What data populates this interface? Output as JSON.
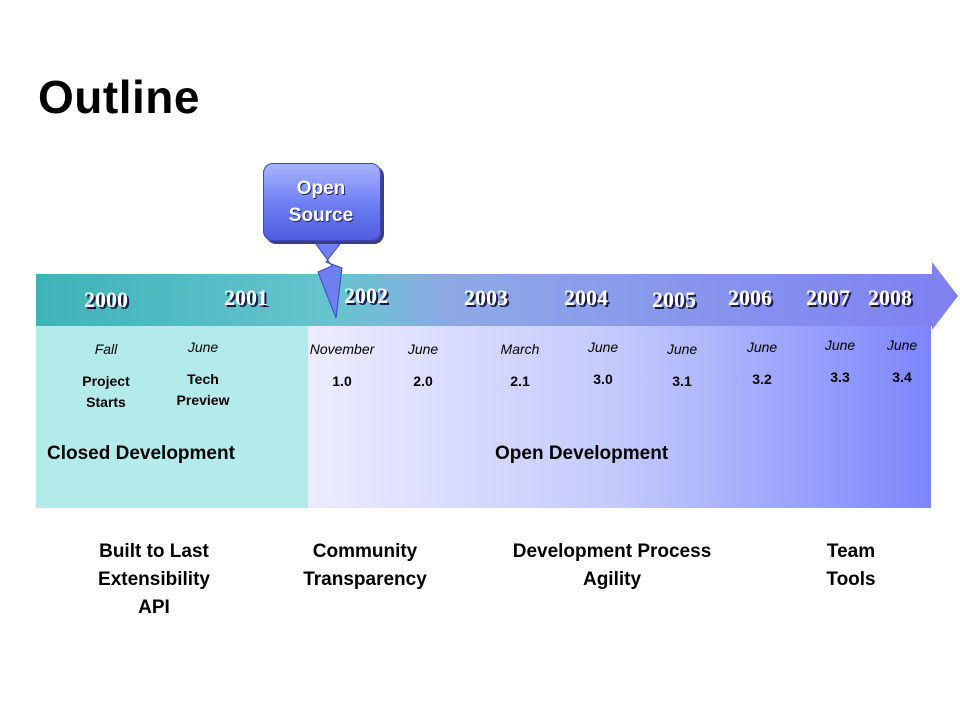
{
  "title": "Outline",
  "callout": {
    "line1": "Open",
    "line2": "Source"
  },
  "years": [
    "2000",
    "2001",
    "2002",
    "2003",
    "2004",
    "2005",
    "2006",
    "2007",
    "2008"
  ],
  "milestones": [
    {
      "month": "Fall",
      "label_lines": [
        "Project",
        "Starts"
      ]
    },
    {
      "month": "June",
      "label_lines": [
        "Tech",
        "Preview"
      ]
    },
    {
      "month": "November",
      "label_lines": [
        "1.0"
      ]
    },
    {
      "month": "June",
      "label_lines": [
        "2.0"
      ]
    },
    {
      "month": "March",
      "label_lines": [
        "2.1"
      ]
    },
    {
      "month": "June",
      "label_lines": [
        "3.0"
      ]
    },
    {
      "month": "June",
      "label_lines": [
        "3.1"
      ]
    },
    {
      "month": "June",
      "label_lines": [
        "3.2"
      ]
    },
    {
      "month": "June",
      "label_lines": [
        "3.3"
      ]
    },
    {
      "month": "June",
      "label_lines": [
        "3.4"
      ]
    }
  ],
  "phases": {
    "closed": "Closed Development",
    "open": "Open Development"
  },
  "themes": [
    [
      "Built to Last",
      "Extensibility",
      "API"
    ],
    [
      "Community",
      "Transparency"
    ],
    [
      "Development Process",
      "Agility"
    ],
    [
      "Team",
      "Tools"
    ]
  ],
  "colors": {
    "arrow_start": "#3fb3b8",
    "arrow_end": "#7d82f2",
    "closed_band": "#b3ebeb",
    "open_band_start": "#ececff",
    "open_band_end": "#7c86fb"
  }
}
